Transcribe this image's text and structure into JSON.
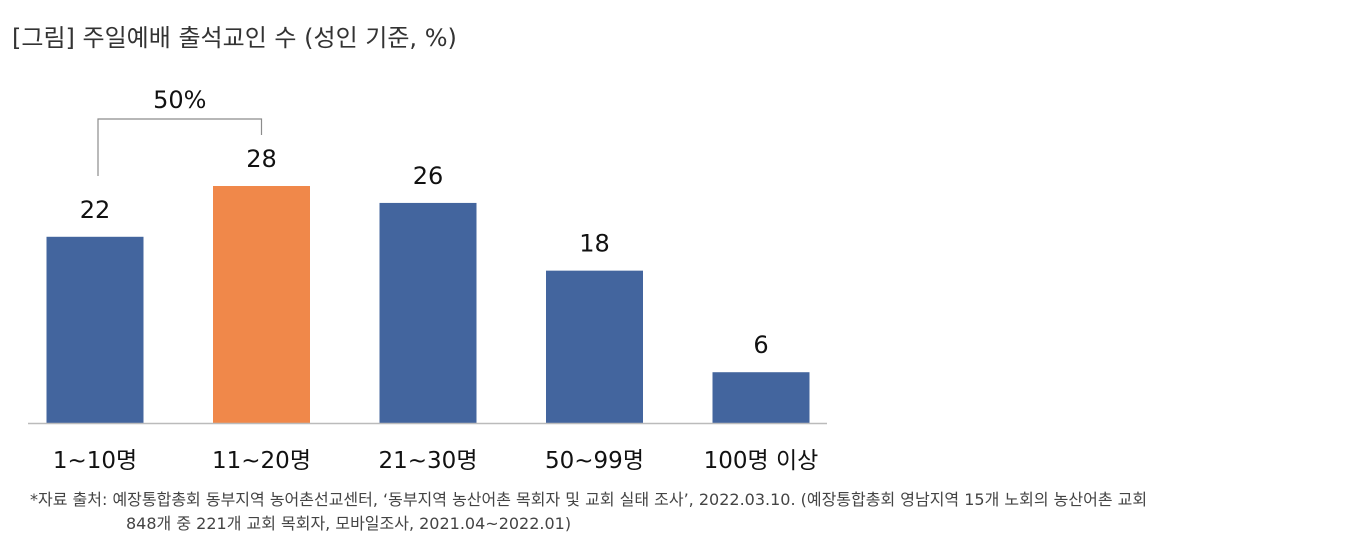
{
  "title": "[그림] 주일예배 출석교인 수 (성인 기준, %)",
  "chart_data": {
    "type": "bar",
    "categories": [
      "1~10명",
      "11~20명",
      "21~30명",
      "50~99명",
      "100명 이상"
    ],
    "values": [
      22,
      28,
      26,
      18,
      6
    ],
    "data_labels": [
      "22",
      "28",
      "26",
      "18",
      "6"
    ],
    "highlight_index": 1,
    "colors": {
      "default": "#43659E",
      "highlight": "#F0884A",
      "axis": "#BBBBBB",
      "bracket": "#8C8C8C"
    },
    "annotation": {
      "text": "50%",
      "spans": [
        0,
        1
      ]
    },
    "ylim": [
      0,
      30
    ],
    "grid": false,
    "legend": "none"
  },
  "source": {
    "line1": "*자료 출처: 예장통합총회 동부지역 농어촌선교센터, ‘동부지역 농산어촌 목회자 및 교회 실태 조사’, 2022.03.10. (예장통합총회 영남지역 15개 노회의 농산어촌 교회",
    "line2": "848개 중 221개 교회 목회자, 모바일조사, 2021.04~2022.01)"
  }
}
